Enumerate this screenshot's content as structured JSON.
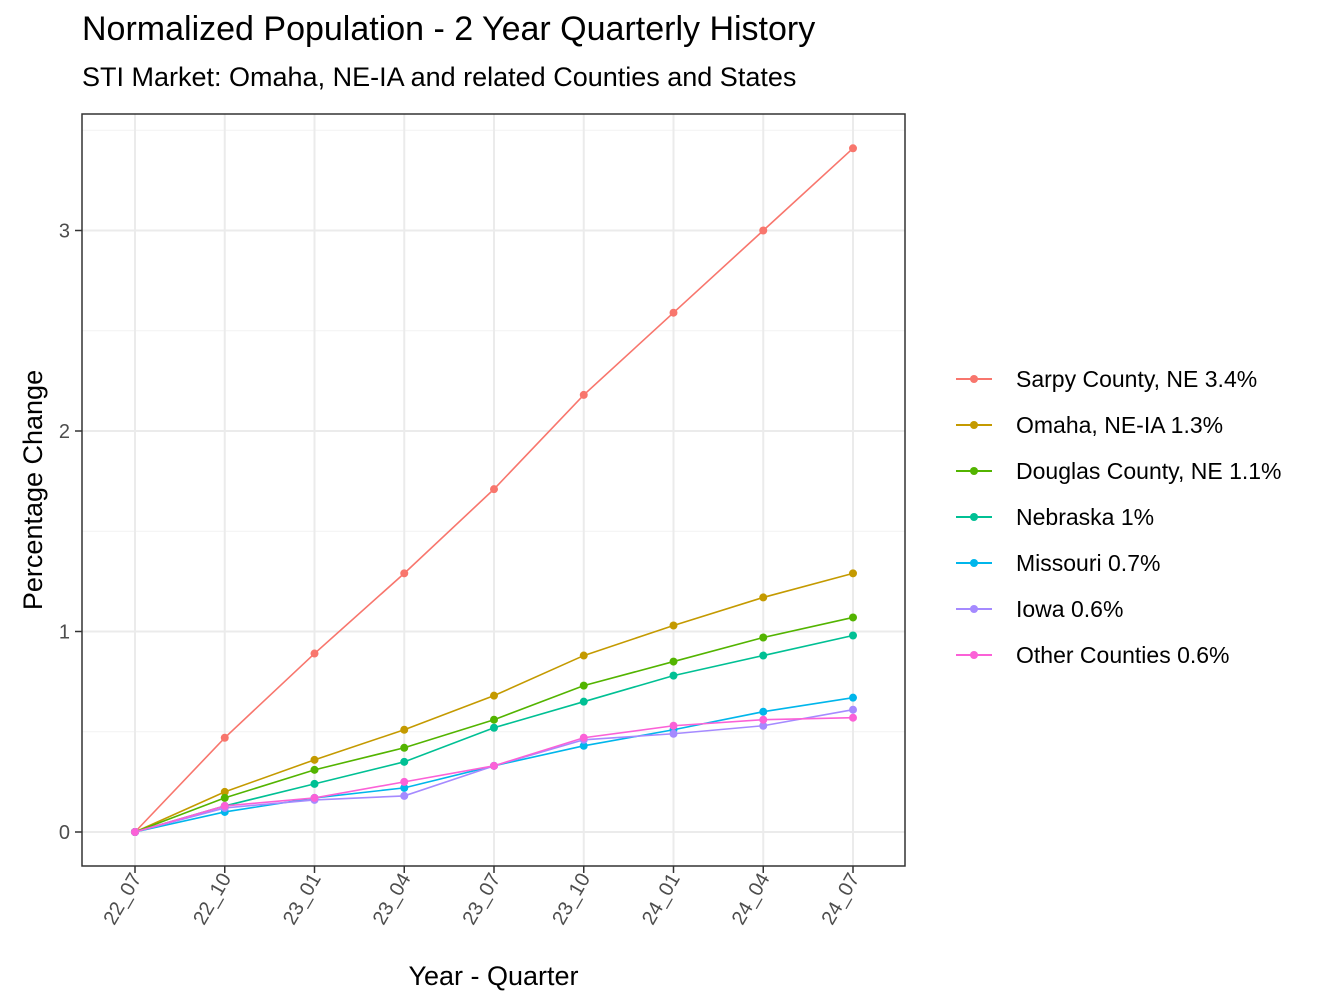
{
  "chart_data": {
    "type": "line",
    "title": "Normalized Population - 2 Year Quarterly History",
    "subtitle": "STI Market: Omaha, NE-IA and related Counties and States",
    "xlabel": "Year - Quarter",
    "ylabel": "Percentage Change",
    "categories": [
      "22_07",
      "22_10",
      "23_01",
      "23_04",
      "23_07",
      "23_10",
      "24_01",
      "24_04",
      "24_07"
    ],
    "yticks": [
      0,
      1,
      2,
      3
    ],
    "ylim": [
      -0.17,
      3.5
    ],
    "grid": true,
    "legend_position": "right",
    "series": [
      {
        "name": "Sarpy County, NE 3.4%",
        "color": "#F8766D",
        "values": [
          0,
          0.47,
          0.89,
          1.29,
          1.71,
          2.18,
          2.59,
          3.0,
          3.41
        ]
      },
      {
        "name": "Omaha, NE-IA 1.3%",
        "color": "#C49A00",
        "values": [
          0,
          0.2,
          0.36,
          0.51,
          0.68,
          0.88,
          1.03,
          1.17,
          1.29
        ]
      },
      {
        "name": "Douglas County, NE 1.1%",
        "color": "#53B400",
        "values": [
          0,
          0.17,
          0.31,
          0.42,
          0.56,
          0.73,
          0.85,
          0.97,
          1.07
        ]
      },
      {
        "name": "Nebraska 1%",
        "color": "#00C094",
        "values": [
          0,
          0.13,
          0.24,
          0.35,
          0.52,
          0.65,
          0.78,
          0.88,
          0.98
        ]
      },
      {
        "name": "Missouri 0.7%",
        "color": "#00B6EB",
        "values": [
          0,
          0.1,
          0.17,
          0.22,
          0.33,
          0.43,
          0.51,
          0.6,
          0.67
        ]
      },
      {
        "name": "Iowa 0.6%",
        "color": "#A58AFF",
        "values": [
          0,
          0.12,
          0.16,
          0.18,
          0.33,
          0.46,
          0.49,
          0.53,
          0.61
        ]
      },
      {
        "name": "Other Counties 0.6%",
        "color": "#FB61D7",
        "values": [
          0,
          0.13,
          0.17,
          0.25,
          0.33,
          0.47,
          0.53,
          0.56,
          0.57
        ]
      }
    ]
  }
}
